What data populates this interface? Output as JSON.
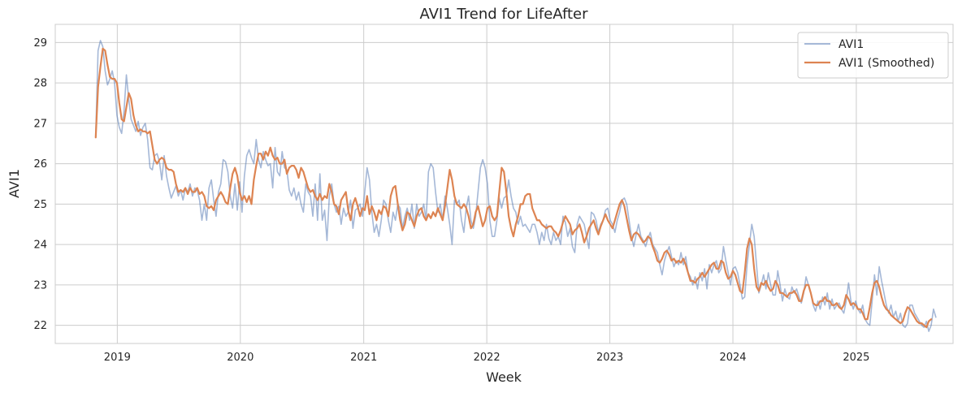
{
  "chart_data": {
    "type": "line",
    "title": "AVI1 Trend for LifeAfter",
    "xlabel": "Week",
    "ylabel": "AVI1",
    "x_start": "2018-10-29",
    "x_interval": "weekly",
    "x_range": [
      "2018-07-01",
      "2025-10-15"
    ],
    "ylim": [
      21.55,
      29.45
    ],
    "x_ticks": [
      {
        "date": "2019-01-01",
        "label": "2019"
      },
      {
        "date": "2020-01-01",
        "label": "2020"
      },
      {
        "date": "2021-01-01",
        "label": "2021"
      },
      {
        "date": "2022-01-01",
        "label": "2022"
      },
      {
        "date": "2023-01-01",
        "label": "2023"
      },
      {
        "date": "2024-01-01",
        "label": "2024"
      },
      {
        "date": "2025-01-01",
        "label": "2025"
      }
    ],
    "y_ticks": [
      22,
      23,
      24,
      25,
      26,
      27,
      28,
      29
    ],
    "grid": true,
    "legend": "top-right",
    "series": [
      {
        "name": "AVI1",
        "color": "#4c72b0",
        "opacity": 0.5,
        "values": [
          26.7,
          28.8,
          29.05,
          28.9,
          28.3,
          27.95,
          28.1,
          28.3,
          28.0,
          27.2,
          26.9,
          26.75,
          27.3,
          28.2,
          27.6,
          27.1,
          26.95,
          26.8,
          27.05,
          26.7,
          26.9,
          27.0,
          26.6,
          25.9,
          25.85,
          26.2,
          26.25,
          26.05,
          25.6,
          26.2,
          25.7,
          25.4,
          25.15,
          25.3,
          25.45,
          25.2,
          25.35,
          25.1,
          25.4,
          25.3,
          25.5,
          25.2,
          25.4,
          25.35,
          25.1,
          24.6,
          25.0,
          24.6,
          25.4,
          25.6,
          25.1,
          24.7,
          25.3,
          25.5,
          26.1,
          26.05,
          25.8,
          25.2,
          24.9,
          25.5,
          24.85,
          25.55,
          24.8,
          25.7,
          26.2,
          26.35,
          26.15,
          26.0,
          26.6,
          26.1,
          25.9,
          26.3,
          26.1,
          25.95,
          26.0,
          25.4,
          26.4,
          25.8,
          25.7,
          26.3,
          25.9,
          25.85,
          25.35,
          25.2,
          25.4,
          25.1,
          25.3,
          25.0,
          24.8,
          25.5,
          25.3,
          25.2,
          24.7,
          25.5,
          24.6,
          25.75,
          24.6,
          24.85,
          24.1,
          25.2,
          25.5,
          25.0,
          24.8,
          24.95,
          24.5,
          24.9,
          24.7,
          24.8,
          25.1,
          24.4,
          24.85,
          24.9,
          25.0,
          24.7,
          25.3,
          25.9,
          25.6,
          24.8,
          24.3,
          24.5,
          24.2,
          24.6,
          25.1,
          25.0,
          24.6,
          24.3,
          24.8,
          24.6,
          25.0,
          24.9,
          24.4,
          24.7,
          24.9,
          24.6,
          25.0,
          24.4,
          25.0,
          24.7,
          24.8,
          25.0,
          24.6,
          25.8,
          26.0,
          25.9,
          25.3,
          24.8,
          25.0,
          24.6,
          25.2,
          24.9,
          24.5,
          24.0,
          25.1,
          25.0,
          25.1,
          24.6,
          24.3,
          24.9,
          25.2,
          24.6,
          24.4,
          24.7,
          25.3,
          25.9,
          26.1,
          25.9,
          25.5,
          24.6,
          24.2,
          24.2,
          24.6,
          25.15,
          24.9,
          25.15,
          25.2,
          25.6,
          25.2,
          24.9,
          24.8,
          24.5,
          24.7,
          24.45,
          24.5,
          24.4,
          24.3,
          24.5,
          24.5,
          24.3,
          24.0,
          24.3,
          24.1,
          24.5,
          24.15,
          24.0,
          24.3,
          24.1,
          24.2,
          24.0,
          24.7,
          24.55,
          24.2,
          24.4,
          23.95,
          23.8,
          24.5,
          24.7,
          24.6,
          24.5,
          24.2,
          23.9,
          24.8,
          24.75,
          24.6,
          24.3,
          24.5,
          24.6,
          24.85,
          24.9,
          24.6,
          24.5,
          24.3,
          24.6,
          24.8,
          25.1,
          25.15,
          25.0,
          24.6,
          24.2,
          23.95,
          24.25,
          24.5,
          24.2,
          24.1,
          23.95,
          24.15,
          24.3,
          24.0,
          23.9,
          23.8,
          23.5,
          23.25,
          23.6,
          23.8,
          23.95,
          23.7,
          23.45,
          23.6,
          23.5,
          23.8,
          23.5,
          23.7,
          23.3,
          23.2,
          23.0,
          23.2,
          22.9,
          23.3,
          23.1,
          23.4,
          22.9,
          23.5,
          23.3,
          23.5,
          23.6,
          23.3,
          23.4,
          23.95,
          23.6,
          23.3,
          23.0,
          23.4,
          23.45,
          23.3,
          23.0,
          22.65,
          22.7,
          23.5,
          24.0,
          24.5,
          24.2,
          23.5,
          22.8,
          23.0,
          23.25,
          22.9,
          23.3,
          23.0,
          22.75,
          22.75,
          23.35,
          23.0,
          22.6,
          22.9,
          22.7,
          22.65,
          22.95,
          22.8,
          22.9,
          22.7,
          22.55,
          22.8,
          23.2,
          23.0,
          22.8,
          22.5,
          22.35,
          22.6,
          22.4,
          22.7,
          22.5,
          22.8,
          22.4,
          22.65,
          22.4,
          22.5,
          22.55,
          22.4,
          22.3,
          22.6,
          23.05,
          22.6,
          22.4,
          22.6,
          22.4,
          22.3,
          22.5,
          22.15,
          22.05,
          22.0,
          22.6,
          23.25,
          22.75,
          23.45,
          23.1,
          22.8,
          22.5,
          22.3,
          22.5,
          22.2,
          22.35,
          22.1,
          22.3,
          22.0,
          21.95,
          22.05,
          22.5,
          22.5,
          22.3,
          22.2,
          22.1,
          22.0,
          21.95,
          22.1,
          21.85,
          22.0,
          22.4,
          22.2
        ]
      },
      {
        "name": "AVI1 (Smoothed)",
        "color": "#dd8452",
        "opacity": 1,
        "values": [
          26.65,
          27.9,
          28.4,
          28.85,
          28.8,
          28.45,
          28.15,
          28.1,
          28.1,
          28.0,
          27.5,
          27.1,
          27.05,
          27.4,
          27.75,
          27.6,
          27.2,
          26.95,
          26.8,
          26.85,
          26.8,
          26.8,
          26.75,
          26.8,
          26.45,
          26.1,
          26.0,
          26.1,
          26.15,
          26.1,
          25.9,
          25.85,
          25.85,
          25.8,
          25.5,
          25.3,
          25.35,
          25.3,
          25.4,
          25.25,
          25.4,
          25.3,
          25.3,
          25.4,
          25.25,
          25.3,
          25.2,
          24.95,
          24.9,
          24.95,
          24.85,
          25.1,
          25.2,
          25.3,
          25.2,
          25.05,
          25.0,
          25.4,
          25.75,
          25.9,
          25.7,
          25.3,
          25.1,
          25.2,
          25.05,
          25.2,
          25.0,
          25.6,
          25.95,
          26.25,
          26.25,
          26.1,
          26.3,
          26.2,
          26.4,
          26.2,
          26.1,
          26.15,
          26.0,
          26.0,
          26.1,
          25.75,
          25.9,
          25.95,
          25.95,
          25.85,
          25.65,
          25.9,
          25.8,
          25.6,
          25.4,
          25.3,
          25.35,
          25.2,
          25.1,
          25.25,
          25.1,
          25.2,
          25.15,
          25.5,
          25.3,
          25.0,
          24.95,
          24.75,
          25.1,
          25.2,
          25.3,
          24.85,
          24.6,
          25.0,
          25.15,
          24.95,
          24.7,
          24.9,
          24.85,
          25.2,
          24.75,
          24.95,
          24.8,
          24.6,
          24.85,
          24.75,
          24.95,
          24.9,
          24.7,
          25.2,
          25.4,
          25.45,
          25.0,
          24.6,
          24.35,
          24.5,
          24.8,
          24.75,
          24.6,
          24.45,
          24.7,
          24.85,
          24.9,
          24.7,
          24.6,
          24.75,
          24.65,
          24.8,
          24.7,
          24.9,
          24.75,
          24.6,
          24.95,
          25.4,
          25.85,
          25.6,
          25.2,
          25.0,
          24.95,
          24.9,
          25.0,
          24.9,
          24.7,
          24.4,
          24.5,
          24.8,
          24.95,
          24.7,
          24.45,
          24.6,
          24.9,
          24.95,
          24.7,
          24.6,
          24.7,
          25.3,
          25.9,
          25.8,
          25.3,
          24.7,
          24.4,
          24.2,
          24.5,
          24.7,
          25.0,
          25.0,
          25.2,
          25.25,
          25.25,
          24.9,
          24.75,
          24.6,
          24.6,
          24.5,
          24.45,
          24.4,
          24.45,
          24.45,
          24.35,
          24.3,
          24.2,
          24.35,
          24.55,
          24.7,
          24.6,
          24.5,
          24.25,
          24.35,
          24.4,
          24.5,
          24.3,
          24.05,
          24.2,
          24.4,
          24.5,
          24.6,
          24.4,
          24.25,
          24.45,
          24.6,
          24.75,
          24.6,
          24.5,
          24.4,
          24.6,
          24.8,
          25.0,
          25.1,
          24.95,
          24.65,
          24.35,
          24.1,
          24.25,
          24.3,
          24.25,
          24.15,
          24.05,
          24.1,
          24.2,
          24.15,
          23.95,
          23.8,
          23.6,
          23.55,
          23.65,
          23.8,
          23.85,
          23.75,
          23.6,
          23.65,
          23.55,
          23.6,
          23.55,
          23.65,
          23.5,
          23.3,
          23.1,
          23.1,
          23.05,
          23.15,
          23.2,
          23.3,
          23.2,
          23.3,
          23.4,
          23.5,
          23.55,
          23.4,
          23.4,
          23.6,
          23.55,
          23.3,
          23.15,
          23.2,
          23.35,
          23.25,
          23.05,
          22.85,
          22.8,
          23.3,
          23.9,
          24.15,
          24.0,
          23.4,
          22.95,
          22.85,
          23.05,
          23.0,
          23.1,
          22.95,
          22.85,
          22.9,
          23.1,
          23.0,
          22.8,
          22.8,
          22.75,
          22.7,
          22.8,
          22.8,
          22.85,
          22.75,
          22.6,
          22.6,
          22.85,
          23.0,
          23.0,
          22.8,
          22.55,
          22.5,
          22.5,
          22.6,
          22.6,
          22.7,
          22.6,
          22.6,
          22.5,
          22.5,
          22.55,
          22.45,
          22.4,
          22.5,
          22.75,
          22.65,
          22.5,
          22.55,
          22.5,
          22.4,
          22.4,
          22.3,
          22.15,
          22.15,
          22.45,
          22.8,
          23.05,
          23.1,
          22.95,
          22.7,
          22.5,
          22.4,
          22.35,
          22.25,
          22.2,
          22.15,
          22.1,
          22.05,
          22.1,
          22.3,
          22.45,
          22.4,
          22.3,
          22.2,
          22.1,
          22.05,
          22.05,
          22.0,
          21.95,
          22.1,
          22.15
        ]
      }
    ]
  }
}
